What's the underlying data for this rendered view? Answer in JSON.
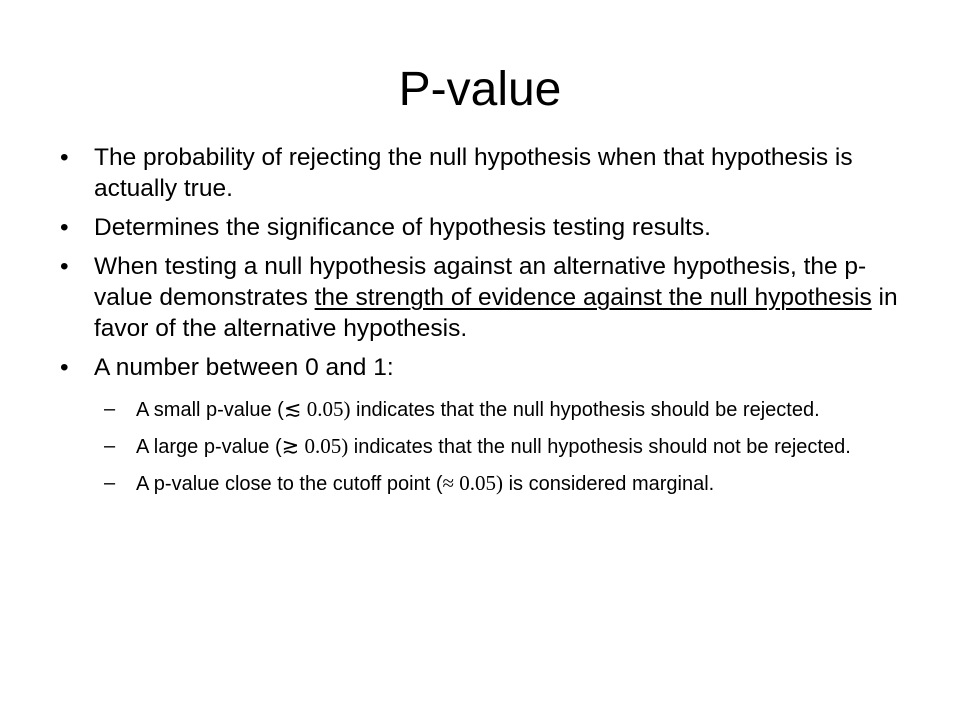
{
  "slide": {
    "title": "P-value",
    "bullet_marker": "•",
    "sub_marker": "–",
    "bullets": [
      {
        "text": "The probability of rejecting the null hypothesis when that hypothesis is actually true."
      },
      {
        "text": "Determines the significance of hypothesis testing results."
      },
      {
        "text_before": "When testing a null hypothesis against an alternative hypothesis, the p-value demonstrates ",
        "text_underlined": "the strength of evidence against the null hypothesis",
        "text_after": " in favor of the alternative hypothesis."
      },
      {
        "text": "A number between 0 and 1:",
        "subitems": [
          {
            "before": "A small p-value (",
            "math": "≲ 0.05)",
            "after": " indicates that the null hypothesis should be rejected."
          },
          {
            "before": "A large p-value (",
            "math": "≳ 0.05)",
            "after": " indicates that the null hypothesis should not be rejected."
          },
          {
            "before": "A p-value close to the cutoff point (",
            "math": "≈ 0.05)",
            "after": " is considered marginal."
          }
        ]
      }
    ]
  }
}
